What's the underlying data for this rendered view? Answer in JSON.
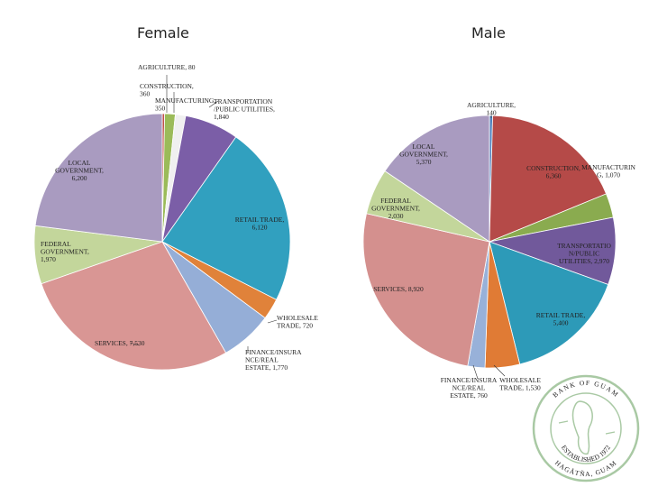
{
  "chart_data": [
    {
      "type": "pie",
      "title": "Female",
      "slices": [
        {
          "label": "AGRICULTURE",
          "value": 80,
          "text": [
            "AGRICULTURE, 80"
          ],
          "color": "#c0504d"
        },
        {
          "label": "CONSTRUCTION",
          "value": 360,
          "text": [
            "CONSTRUCTION,",
            "360"
          ],
          "color": "#9bbb59"
        },
        {
          "label": "MANUFACTURING",
          "value": 350,
          "text": [
            "MANUFACTURING,",
            "350"
          ],
          "color": "#f0f0f0"
        },
        {
          "label": "TRANSPORTATION/PUBLIC UTILITIES",
          "value": 1840,
          "text": [
            "TRANSPORTATION",
            "/PUBLIC UTILITIES,",
            "1,840"
          ],
          "color": "#7b5ea7"
        },
        {
          "label": "RETAIL TRADE",
          "value": 6120,
          "text": [
            "RETAIL TRADE,",
            "6,120"
          ],
          "color": "#31a0bf"
        },
        {
          "label": "WHOLESALE TRADE",
          "value": 720,
          "text": [
            "WHOLESALE",
            "TRADE, 720"
          ],
          "color": "#e0823a"
        },
        {
          "label": "FINANCE/INSURANCE/REAL ESTATE",
          "value": 1770,
          "text": [
            "FINANCE/INSURA",
            "NCE/REAL",
            "ESTATE, 1,770"
          ],
          "color": "#95aed7"
        },
        {
          "label": "SERVICES",
          "value": 7530,
          "text": [
            "SERVICES, 7,530"
          ],
          "color": "#d99694"
        },
        {
          "label": "FEDERAL GOVERNMENT",
          "value": 1970,
          "text": [
            "FEDERAL",
            "GOVERNMENT,",
            "1,970"
          ],
          "color": "#c3d69b"
        },
        {
          "label": "LOCAL GOVERNMENT",
          "value": 6200,
          "text": [
            "LOCAL",
            "GOVERNMENT,",
            "6,200"
          ],
          "color": "#a99bc0"
        }
      ]
    },
    {
      "type": "pie",
      "title": "Male",
      "slices": [
        {
          "label": "AGRICULTURE",
          "value": 140,
          "text": [
            "AGRICULTURE,",
            "140"
          ],
          "color": "#4f81bd"
        },
        {
          "label": "CONSTRUCTION",
          "value": 6360,
          "text": [
            "CONSTRUCTION,",
            "6,360"
          ],
          "color": "#b54a48"
        },
        {
          "label": "MANUFACTURING",
          "value": 1070,
          "text": [
            "MANUFACTURIN",
            "G, 1,070"
          ],
          "color": "#8aab4f"
        },
        {
          "label": "TRANSPORTATION/PUBLIC UTILITIES",
          "value": 2970,
          "text": [
            "TRANSPORTATIO",
            "N/PUBLIC",
            "UTILITIES, 2,970"
          ],
          "color": "#71599b"
        },
        {
          "label": "RETAIL TRADE",
          "value": 5400,
          "text": [
            "RETAIL TRADE,",
            "5,400"
          ],
          "color": "#2d9ab8"
        },
        {
          "label": "WHOLESALE TRADE",
          "value": 1530,
          "text": [
            "WHOLESALE",
            "TRADE, 1,530"
          ],
          "color": "#e07b35"
        },
        {
          "label": "FINANCE/INSURANCE/REAL ESTATE",
          "value": 760,
          "text": [
            "FINANCE/INSURA",
            "NCE/REAL",
            "ESTATE, 760"
          ],
          "color": "#98b1d9"
        },
        {
          "label": "SERVICES",
          "value": 8920,
          "text": [
            "SERVICES, 8,920"
          ],
          "color": "#d4908e"
        },
        {
          "label": "FEDERAL GOVERNMENT",
          "value": 2030,
          "text": [
            "FEDERAL",
            "GOVERNMENT,",
            "2,030"
          ],
          "color": "#c3d69b"
        },
        {
          "label": "LOCAL GOVERNMENT",
          "value": 5370,
          "text": [
            "LOCAL",
            "GOVERNMENT,",
            "5,370"
          ],
          "color": "#a99bc0"
        }
      ]
    }
  ],
  "watermark": {
    "text_top": "BANK OF GUAM",
    "text_bottom": "HAGÅTÑA, GUAM",
    "text_inner": "ESTABLISHED 1972",
    "color": "#a9c9a4"
  }
}
